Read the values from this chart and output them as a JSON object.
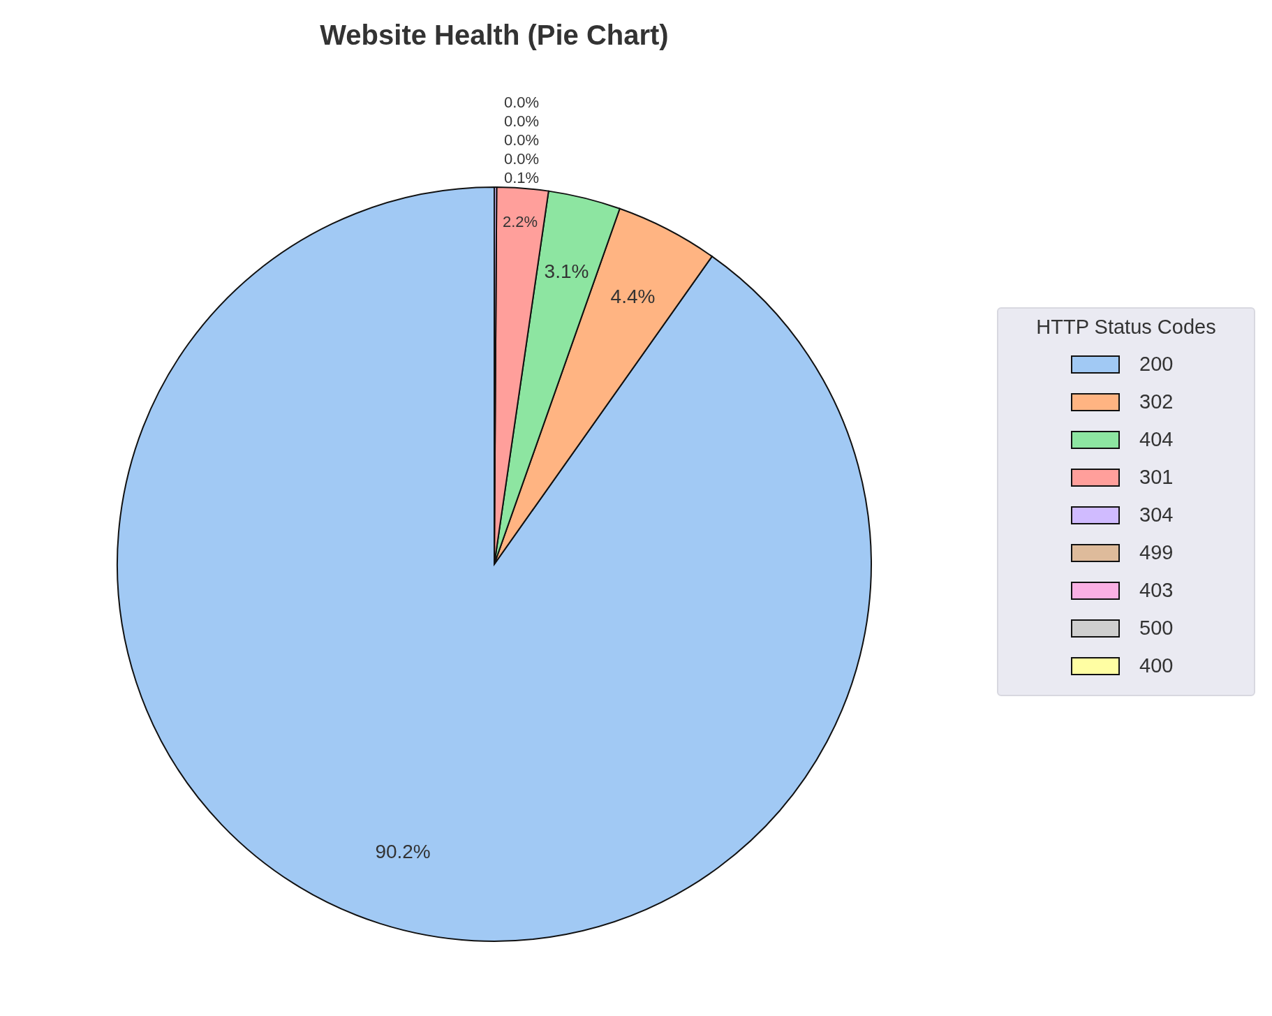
{
  "chart_data": {
    "type": "pie",
    "title": "Website Health (Pie Chart)",
    "legend_title": "HTTP Status Codes",
    "legend": "right",
    "categories": [
      "200",
      "302",
      "404",
      "301",
      "304",
      "499",
      "403",
      "500",
      "400"
    ],
    "values": [
      90.2,
      4.4,
      3.1,
      2.2,
      0.1,
      0.0,
      0.0,
      0.0,
      0.0
    ],
    "value_labels": [
      "90.2%",
      "4.4%",
      "3.1%",
      "2.2%",
      "0.1%",
      "0.0%",
      "0.0%",
      "0.0%",
      "0.0%"
    ],
    "colors": [
      "#a1c9f4",
      "#ffb482",
      "#8de5a1",
      "#ff9f9b",
      "#d0bbff",
      "#debb9b",
      "#fab0e4",
      "#cfcfcf",
      "#fffea3"
    ]
  }
}
